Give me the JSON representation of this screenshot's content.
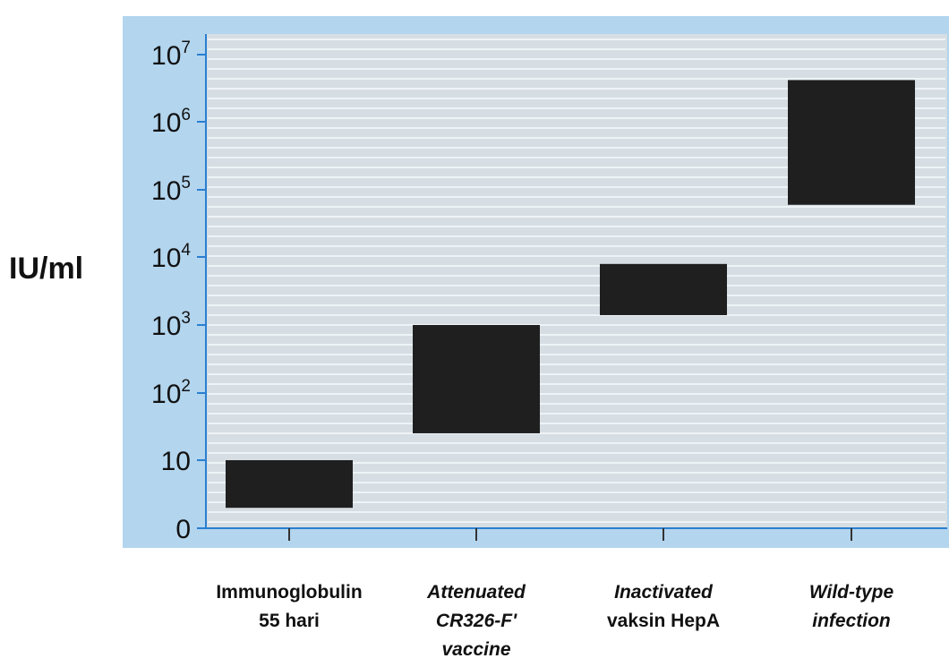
{
  "chart_data": {
    "type": "bar",
    "subtype": "floating-range",
    "ylabel": "IU/ml",
    "yscale": "log",
    "y_ticks": [
      {
        "base": "0",
        "exp": ""
      },
      {
        "base": "10",
        "exp": ""
      },
      {
        "base": "10",
        "exp": "2"
      },
      {
        "base": "10",
        "exp": "3"
      },
      {
        "base": "10",
        "exp": "4"
      },
      {
        "base": "10",
        "exp": "5"
      },
      {
        "base": "10",
        "exp": "6"
      },
      {
        "base": "10",
        "exp": "7"
      }
    ],
    "categories": [
      {
        "lines": [
          "Immunoglobulin",
          "55 hari"
        ],
        "italic": [
          false,
          false
        ],
        "low": 3,
        "high": 10
      },
      {
        "lines": [
          "Attenuated",
          "CR326-F'",
          "vaccine"
        ],
        "italic": [
          true,
          true,
          true
        ],
        "low": 25,
        "high": 1000
      },
      {
        "lines": [
          "Inactivated",
          "vaksin HepA"
        ],
        "italic": [
          true,
          false
        ],
        "low": 1400,
        "high": 8000
      },
      {
        "lines": [
          "Wild-type",
          "infection"
        ],
        "italic": [
          true,
          true
        ],
        "low": 60000,
        "high": 4200000
      }
    ],
    "grid": true,
    "colors": {
      "outer_panel": "#b3d5ee",
      "plot_bg": "#d6dee4",
      "grid_line": "#eef3f6",
      "axis": "#2a7fd0",
      "bar": "#1f1f1f"
    }
  }
}
